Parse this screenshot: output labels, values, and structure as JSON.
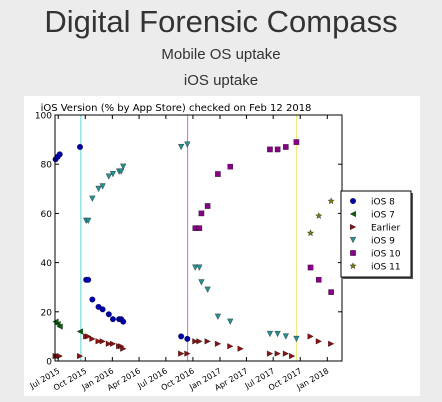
{
  "page": {
    "site_title": "Digital Forensic Compass",
    "subtitle": "Mobile OS uptake",
    "section_title": "iOS uptake"
  },
  "chart_data": {
    "type": "scatter",
    "title": "iOS Version (% by App Store) checked on Feb 12 2018",
    "xlabel": "",
    "ylabel": "",
    "x_range": [
      "2015-06-20",
      "2018-02-20"
    ],
    "ylim": [
      0,
      100
    ],
    "yticks": [
      0,
      20,
      40,
      60,
      80,
      100
    ],
    "xticks": [
      {
        "date": "2015-07-01",
        "label": "Jul 2015"
      },
      {
        "date": "2015-10-01",
        "label": "Oct 2015"
      },
      {
        "date": "2016-01-01",
        "label": "Jan 2016"
      },
      {
        "date": "2016-04-01",
        "label": "Apr 2016"
      },
      {
        "date": "2016-07-01",
        "label": "Jul 2016"
      },
      {
        "date": "2016-10-01",
        "label": "Oct 2016"
      },
      {
        "date": "2017-01-01",
        "label": "Jan 2017"
      },
      {
        "date": "2017-04-01",
        "label": "Apr 2017"
      },
      {
        "date": "2017-07-01",
        "label": "Jul 2017"
      },
      {
        "date": "2017-10-01",
        "label": "Oct 2017"
      },
      {
        "date": "2018-01-01",
        "label": "Jan 2018"
      }
    ],
    "grid": false,
    "legend_position": "right",
    "vlines": [
      {
        "date": "2015-09-16",
        "color": "#5fd3d3"
      },
      {
        "date": "2016-09-13",
        "color": "#e35fe3"
      },
      {
        "date": "2017-09-19",
        "color": "#e6e65f"
      }
    ],
    "series": [
      {
        "name": "iOS 8",
        "color": "#0000aa",
        "marker": "circle",
        "points": [
          [
            "2015-06-22",
            82
          ],
          [
            "2015-06-29",
            83
          ],
          [
            "2015-07-06",
            84
          ],
          [
            "2015-09-13",
            87
          ],
          [
            "2015-10-04",
            33
          ],
          [
            "2015-10-11",
            33
          ],
          [
            "2015-10-25",
            25
          ],
          [
            "2015-11-15",
            22
          ],
          [
            "2015-11-29",
            21
          ],
          [
            "2015-12-20",
            19
          ],
          [
            "2016-01-03",
            17
          ],
          [
            "2016-01-24",
            17
          ],
          [
            "2016-01-31",
            17
          ],
          [
            "2016-02-07",
            16
          ],
          [
            "2016-08-22",
            10
          ],
          [
            "2016-09-12",
            9
          ]
        ]
      },
      {
        "name": "iOS 7",
        "color": "#0b5e0b",
        "marker": "triangle-left",
        "points": [
          [
            "2015-06-22",
            16
          ],
          [
            "2015-06-29",
            15
          ],
          [
            "2015-07-06",
            14
          ],
          [
            "2015-09-13",
            12
          ]
        ]
      },
      {
        "name": "Earlier",
        "color": "#8b1010",
        "marker": "triangle-right",
        "points": [
          [
            "2015-06-22",
            2
          ],
          [
            "2015-06-29",
            2
          ],
          [
            "2015-07-06",
            2
          ],
          [
            "2015-09-13",
            2
          ],
          [
            "2015-10-04",
            10
          ],
          [
            "2015-10-11",
            10
          ],
          [
            "2015-10-25",
            9
          ],
          [
            "2015-11-15",
            8
          ],
          [
            "2015-11-29",
            8
          ],
          [
            "2015-12-20",
            7
          ],
          [
            "2016-01-03",
            7
          ],
          [
            "2016-01-24",
            6
          ],
          [
            "2016-01-31",
            6
          ],
          [
            "2016-02-07",
            5
          ],
          [
            "2016-08-22",
            3
          ],
          [
            "2016-09-12",
            3
          ],
          [
            "2016-10-09",
            8
          ],
          [
            "2016-10-23",
            8
          ],
          [
            "2016-11-20",
            8
          ],
          [
            "2016-12-25",
            7
          ],
          [
            "2017-02-05",
            6
          ],
          [
            "2017-03-12",
            5
          ],
          [
            "2017-06-20",
            3
          ],
          [
            "2017-07-16",
            3
          ],
          [
            "2017-08-13",
            3
          ],
          [
            "2017-09-03",
            2
          ],
          [
            "2017-11-05",
            10
          ],
          [
            "2017-12-03",
            8
          ],
          [
            "2018-01-14",
            7
          ]
        ]
      },
      {
        "name": "iOS 9",
        "color": "#2a8f8f",
        "marker": "triangle-down",
        "points": [
          [
            "2015-10-04",
            57
          ],
          [
            "2015-10-11",
            57
          ],
          [
            "2015-10-25",
            66
          ],
          [
            "2015-11-15",
            70
          ],
          [
            "2015-11-29",
            71
          ],
          [
            "2015-12-20",
            75
          ],
          [
            "2016-01-03",
            76
          ],
          [
            "2016-01-24",
            77
          ],
          [
            "2016-01-31",
            77
          ],
          [
            "2016-02-07",
            79
          ],
          [
            "2016-08-22",
            87
          ],
          [
            "2016-09-12",
            88
          ],
          [
            "2016-10-09",
            38
          ],
          [
            "2016-10-23",
            38
          ],
          [
            "2016-10-30",
            32
          ],
          [
            "2016-11-20",
            29
          ],
          [
            "2016-12-25",
            18
          ],
          [
            "2017-02-05",
            16
          ],
          [
            "2017-06-20",
            11
          ],
          [
            "2017-07-16",
            11
          ],
          [
            "2017-08-13",
            10
          ],
          [
            "2017-09-18",
            9
          ]
        ]
      },
      {
        "name": "iOS 10",
        "color": "#880088",
        "marker": "square",
        "points": [
          [
            "2016-10-09",
            54
          ],
          [
            "2016-10-23",
            54
          ],
          [
            "2016-10-30",
            60
          ],
          [
            "2016-11-20",
            63
          ],
          [
            "2016-12-25",
            76
          ],
          [
            "2017-02-05",
            79
          ],
          [
            "2017-06-20",
            86
          ],
          [
            "2017-07-16",
            86
          ],
          [
            "2017-08-13",
            87
          ],
          [
            "2017-09-18",
            89
          ],
          [
            "2017-11-05",
            38
          ],
          [
            "2017-12-03",
            33
          ],
          [
            "2018-01-14",
            28
          ]
        ]
      },
      {
        "name": "iOS 11",
        "color": "#7a7a14",
        "marker": "star",
        "points": [
          [
            "2017-11-05",
            52
          ],
          [
            "2017-12-03",
            59
          ],
          [
            "2018-01-14",
            65
          ]
        ]
      }
    ]
  }
}
